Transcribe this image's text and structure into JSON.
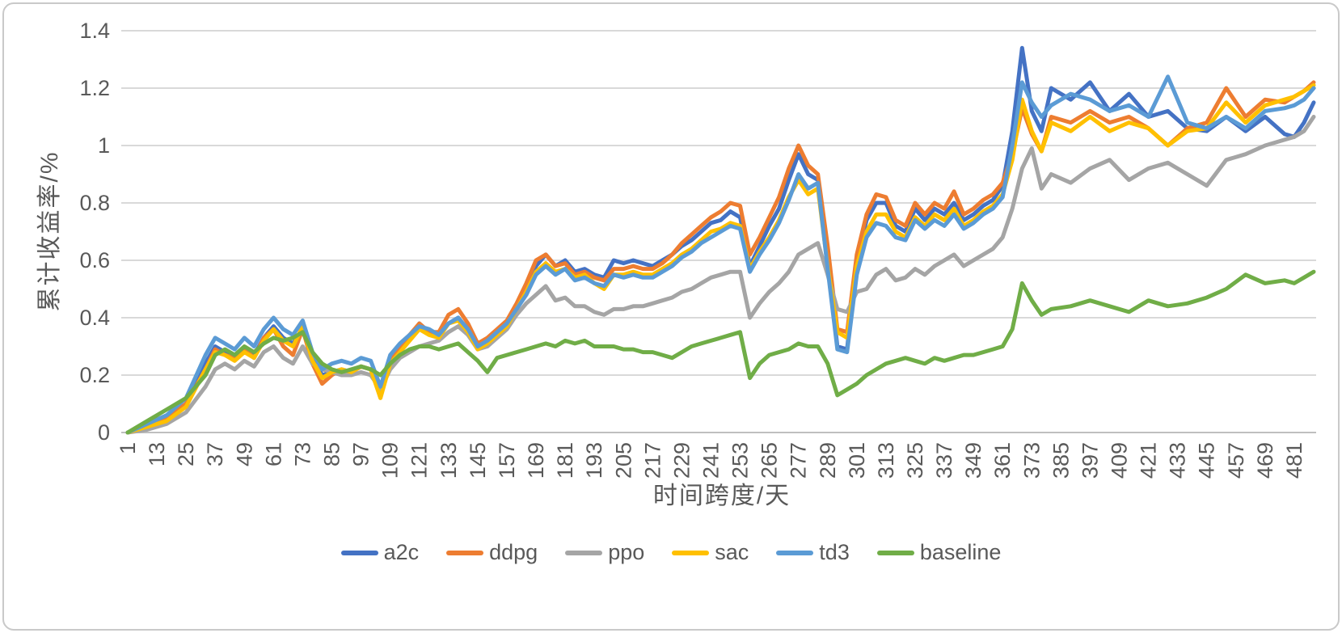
{
  "colors": {
    "grid": "#D9D9D9",
    "axis_line": "#BFBFBF",
    "tick_text": "#595959",
    "a2c": "#4472C4",
    "ddpg": "#ED7D31",
    "ppo": "#A5A5A5",
    "sac": "#FFC000",
    "td3": "#5B9BD5",
    "baseline": "#70AD47"
  },
  "chart_data": {
    "type": "line",
    "title": "",
    "xlabel": "时间跨度/天",
    "ylabel": "累计收益率/%",
    "ylim": [
      0,
      1.4
    ],
    "xlim": [
      1,
      490
    ],
    "grid": "horizontal",
    "legend_position": "bottom",
    "yticks": [
      0,
      0.2,
      0.4,
      0.6,
      0.8,
      1,
      1.2,
      1.4
    ],
    "ytick_labels": [
      "0",
      "0.2",
      "0.4",
      "0.6",
      "0.8",
      "1",
      "1.2",
      "1.4"
    ],
    "xtick_labels": [
      "1",
      "13",
      "25",
      "37",
      "49",
      "61",
      "73",
      "85",
      "97",
      "109",
      "121",
      "133",
      "145",
      "157",
      "169",
      "181",
      "193",
      "205",
      "217",
      "229",
      "241",
      "253",
      "265",
      "277",
      "289",
      "301",
      "313",
      "325",
      "337",
      "349",
      "361",
      "373",
      "385",
      "397",
      "409",
      "421",
      "433",
      "445",
      "457",
      "469",
      "481"
    ],
    "xtick_step": 12,
    "x": [
      1,
      9,
      17,
      25,
      33,
      37,
      41,
      45,
      49,
      53,
      57,
      61,
      65,
      69,
      73,
      77,
      81,
      85,
      89,
      93,
      97,
      101,
      105,
      109,
      113,
      117,
      121,
      125,
      129,
      133,
      137,
      141,
      145,
      149,
      153,
      157,
      161,
      165,
      169,
      173,
      177,
      181,
      185,
      189,
      193,
      197,
      201,
      205,
      209,
      213,
      217,
      221,
      225,
      229,
      233,
      237,
      241,
      245,
      249,
      253,
      257,
      261,
      265,
      269,
      273,
      277,
      281,
      285,
      289,
      293,
      297,
      301,
      305,
      309,
      313,
      317,
      321,
      325,
      329,
      333,
      337,
      341,
      345,
      349,
      353,
      357,
      361,
      365,
      369,
      373,
      377,
      381,
      389,
      397,
      405,
      413,
      421,
      429,
      437,
      445,
      453,
      461,
      469,
      477,
      481,
      485,
      489
    ],
    "series": [
      {
        "name": "a2c",
        "color": "#4472C4",
        "values": [
          0,
          0.02,
          0.05,
          0.1,
          0.24,
          0.3,
          0.28,
          0.26,
          0.29,
          0.27,
          0.33,
          0.37,
          0.33,
          0.31,
          0.36,
          0.26,
          0.2,
          0.21,
          0.22,
          0.21,
          0.23,
          0.22,
          0.13,
          0.24,
          0.29,
          0.33,
          0.38,
          0.35,
          0.34,
          0.38,
          0.4,
          0.35,
          0.3,
          0.32,
          0.35,
          0.38,
          0.44,
          0.5,
          0.58,
          0.62,
          0.58,
          0.6,
          0.56,
          0.57,
          0.55,
          0.54,
          0.6,
          0.59,
          0.6,
          0.59,
          0.58,
          0.6,
          0.62,
          0.65,
          0.67,
          0.7,
          0.73,
          0.74,
          0.77,
          0.75,
          0.58,
          0.65,
          0.72,
          0.78,
          0.88,
          0.97,
          0.9,
          0.88,
          0.6,
          0.3,
          0.29,
          0.6,
          0.74,
          0.8,
          0.8,
          0.72,
          0.7,
          0.78,
          0.74,
          0.78,
          0.76,
          0.8,
          0.74,
          0.76,
          0.79,
          0.81,
          0.86,
          1.05,
          1.34,
          1.12,
          1.05,
          1.2,
          1.16,
          1.22,
          1.12,
          1.18,
          1.1,
          1.12,
          1.06,
          1.05,
          1.1,
          1.05,
          1.1,
          1.04,
          1.03,
          1.08,
          1.15
        ]
      },
      {
        "name": "ddpg",
        "color": "#ED7D31",
        "values": [
          0,
          0.02,
          0.05,
          0.1,
          0.22,
          0.29,
          0.27,
          0.26,
          0.29,
          0.26,
          0.33,
          0.36,
          0.3,
          0.27,
          0.36,
          0.24,
          0.17,
          0.2,
          0.22,
          0.21,
          0.23,
          0.22,
          0.15,
          0.25,
          0.3,
          0.34,
          0.38,
          0.35,
          0.35,
          0.41,
          0.43,
          0.38,
          0.31,
          0.33,
          0.36,
          0.39,
          0.45,
          0.52,
          0.6,
          0.62,
          0.58,
          0.59,
          0.55,
          0.56,
          0.54,
          0.53,
          0.57,
          0.57,
          0.58,
          0.57,
          0.57,
          0.59,
          0.62,
          0.66,
          0.69,
          0.72,
          0.75,
          0.77,
          0.8,
          0.79,
          0.62,
          0.68,
          0.75,
          0.82,
          0.92,
          1.0,
          0.93,
          0.9,
          0.65,
          0.36,
          0.35,
          0.62,
          0.76,
          0.83,
          0.82,
          0.74,
          0.72,
          0.8,
          0.76,
          0.8,
          0.78,
          0.84,
          0.76,
          0.78,
          0.81,
          0.83,
          0.87,
          0.97,
          1.13,
          1.04,
          0.98,
          1.1,
          1.08,
          1.12,
          1.08,
          1.1,
          1.06,
          1.0,
          1.06,
          1.08,
          1.2,
          1.1,
          1.16,
          1.15,
          1.17,
          1.19,
          1.22
        ]
      },
      {
        "name": "ppo",
        "color": "#A5A5A5",
        "values": [
          0,
          0.01,
          0.03,
          0.07,
          0.16,
          0.22,
          0.24,
          0.22,
          0.25,
          0.23,
          0.28,
          0.3,
          0.26,
          0.24,
          0.3,
          0.24,
          0.22,
          0.21,
          0.2,
          0.2,
          0.21,
          0.2,
          0.15,
          0.22,
          0.26,
          0.28,
          0.3,
          0.31,
          0.32,
          0.35,
          0.37,
          0.34,
          0.29,
          0.3,
          0.33,
          0.36,
          0.41,
          0.45,
          0.48,
          0.51,
          0.46,
          0.47,
          0.44,
          0.44,
          0.42,
          0.41,
          0.43,
          0.43,
          0.44,
          0.44,
          0.45,
          0.46,
          0.47,
          0.49,
          0.5,
          0.52,
          0.54,
          0.55,
          0.56,
          0.56,
          0.4,
          0.45,
          0.49,
          0.52,
          0.56,
          0.62,
          0.64,
          0.66,
          0.55,
          0.43,
          0.42,
          0.49,
          0.5,
          0.55,
          0.57,
          0.53,
          0.54,
          0.57,
          0.55,
          0.58,
          0.6,
          0.62,
          0.58,
          0.6,
          0.62,
          0.64,
          0.68,
          0.78,
          0.92,
          0.99,
          0.85,
          0.9,
          0.87,
          0.92,
          0.95,
          0.88,
          0.92,
          0.94,
          0.9,
          0.86,
          0.95,
          0.97,
          1.0,
          1.02,
          1.03,
          1.05,
          1.1
        ]
      },
      {
        "name": "sac",
        "color": "#FFC000",
        "values": [
          0,
          0.02,
          0.04,
          0.09,
          0.22,
          0.28,
          0.27,
          0.25,
          0.28,
          0.26,
          0.32,
          0.36,
          0.32,
          0.3,
          0.37,
          0.25,
          0.19,
          0.21,
          0.22,
          0.21,
          0.23,
          0.22,
          0.12,
          0.24,
          0.28,
          0.32,
          0.36,
          0.34,
          0.33,
          0.38,
          0.39,
          0.35,
          0.29,
          0.31,
          0.34,
          0.37,
          0.43,
          0.49,
          0.56,
          0.59,
          0.56,
          0.57,
          0.54,
          0.55,
          0.52,
          0.5,
          0.55,
          0.55,
          0.56,
          0.55,
          0.55,
          0.57,
          0.59,
          0.62,
          0.64,
          0.67,
          0.7,
          0.71,
          0.73,
          0.72,
          0.57,
          0.63,
          0.68,
          0.74,
          0.82,
          0.88,
          0.83,
          0.85,
          0.58,
          0.35,
          0.33,
          0.58,
          0.7,
          0.76,
          0.76,
          0.7,
          0.68,
          0.75,
          0.72,
          0.76,
          0.74,
          0.78,
          0.72,
          0.74,
          0.77,
          0.79,
          0.83,
          0.95,
          1.16,
          1.05,
          0.98,
          1.08,
          1.05,
          1.1,
          1.05,
          1.08,
          1.06,
          1.0,
          1.05,
          1.06,
          1.15,
          1.08,
          1.14,
          1.16,
          1.17,
          1.19,
          1.21
        ]
      },
      {
        "name": "td3",
        "color": "#5B9BD5",
        "values": [
          0,
          0.03,
          0.06,
          0.12,
          0.27,
          0.33,
          0.31,
          0.29,
          0.33,
          0.3,
          0.36,
          0.4,
          0.36,
          0.34,
          0.39,
          0.28,
          0.22,
          0.24,
          0.25,
          0.24,
          0.26,
          0.25,
          0.16,
          0.27,
          0.31,
          0.34,
          0.37,
          0.36,
          0.34,
          0.38,
          0.4,
          0.36,
          0.3,
          0.32,
          0.35,
          0.38,
          0.43,
          0.48,
          0.55,
          0.58,
          0.55,
          0.57,
          0.53,
          0.54,
          0.52,
          0.51,
          0.55,
          0.54,
          0.55,
          0.54,
          0.54,
          0.56,
          0.58,
          0.61,
          0.63,
          0.66,
          0.68,
          0.7,
          0.72,
          0.71,
          0.56,
          0.62,
          0.67,
          0.73,
          0.81,
          0.9,
          0.85,
          0.87,
          0.57,
          0.29,
          0.28,
          0.55,
          0.68,
          0.73,
          0.72,
          0.68,
          0.67,
          0.74,
          0.71,
          0.74,
          0.72,
          0.76,
          0.71,
          0.73,
          0.76,
          0.78,
          0.82,
          1.0,
          1.22,
          1.15,
          1.1,
          1.14,
          1.18,
          1.16,
          1.12,
          1.14,
          1.1,
          1.24,
          1.08,
          1.06,
          1.1,
          1.06,
          1.12,
          1.13,
          1.14,
          1.16,
          1.2
        ]
      },
      {
        "name": "baseline",
        "color": "#70AD47",
        "values": [
          0,
          0.04,
          0.08,
          0.12,
          0.2,
          0.27,
          0.29,
          0.27,
          0.3,
          0.28,
          0.31,
          0.33,
          0.32,
          0.33,
          0.35,
          0.28,
          0.24,
          0.22,
          0.21,
          0.22,
          0.23,
          0.22,
          0.2,
          0.24,
          0.27,
          0.29,
          0.3,
          0.3,
          0.29,
          0.3,
          0.31,
          0.28,
          0.25,
          0.21,
          0.26,
          0.27,
          0.28,
          0.29,
          0.3,
          0.31,
          0.3,
          0.32,
          0.31,
          0.32,
          0.3,
          0.3,
          0.3,
          0.29,
          0.29,
          0.28,
          0.28,
          0.27,
          0.26,
          0.28,
          0.3,
          0.31,
          0.32,
          0.33,
          0.34,
          0.35,
          0.19,
          0.24,
          0.27,
          0.28,
          0.29,
          0.31,
          0.3,
          0.3,
          0.24,
          0.13,
          0.15,
          0.17,
          0.2,
          0.22,
          0.24,
          0.25,
          0.26,
          0.25,
          0.24,
          0.26,
          0.25,
          0.26,
          0.27,
          0.27,
          0.28,
          0.29,
          0.3,
          0.36,
          0.52,
          0.46,
          0.41,
          0.43,
          0.44,
          0.46,
          0.44,
          0.42,
          0.46,
          0.44,
          0.45,
          0.47,
          0.5,
          0.55,
          0.52,
          0.53,
          0.52,
          0.54,
          0.56
        ]
      }
    ]
  }
}
